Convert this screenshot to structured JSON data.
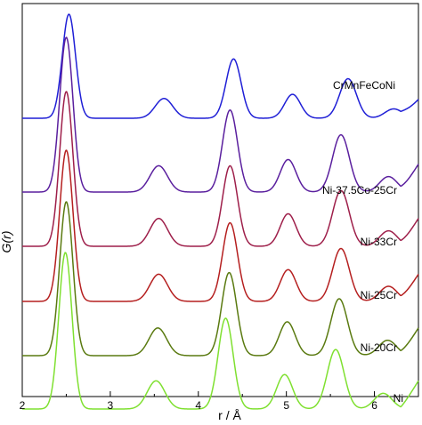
{
  "chart_data": {
    "type": "line",
    "xlabel": "r / Å",
    "ylabel": "G(r)",
    "xlim": [
      2,
      6.5
    ],
    "xticks": [
      2,
      3,
      4,
      5,
      6
    ],
    "y_ticks_shown": false,
    "legend": "inline labels at right",
    "grid": false,
    "x_range_plotted": [
      2.0,
      6.5
    ],
    "series": [
      {
        "name": "CrMnFeCoNi",
        "color": "#1f1fd6",
        "offset": 5,
        "peaks": [
          {
            "r": 2.53,
            "height": 1.0,
            "width": 0.075
          },
          {
            "r": 3.61,
            "height": 0.19,
            "width": 0.1
          },
          {
            "r": 4.4,
            "height": 0.57,
            "width": 0.085
          },
          {
            "r": 5.07,
            "height": 0.23,
            "width": 0.09
          },
          {
            "r": 5.7,
            "height": 0.38,
            "width": 0.095
          },
          {
            "r": 6.22,
            "height": 0.09,
            "width": 0.1
          }
        ]
      },
      {
        "name": "Ni-37.5Co-25Cr",
        "color": "#5a1f9e",
        "offset": 4,
        "peaks": [
          {
            "r": 2.5,
            "height": 1.0,
            "width": 0.075
          },
          {
            "r": 3.55,
            "height": 0.17,
            "width": 0.1
          },
          {
            "r": 4.36,
            "height": 0.53,
            "width": 0.085
          },
          {
            "r": 5.02,
            "height": 0.21,
            "width": 0.09
          },
          {
            "r": 5.62,
            "height": 0.37,
            "width": 0.095
          },
          {
            "r": 6.16,
            "height": 0.1,
            "width": 0.1
          }
        ]
      },
      {
        "name": "Ni-33Cr",
        "color": "#9e1f4a",
        "offset": 3,
        "peaks": [
          {
            "r": 2.5,
            "height": 1.0,
            "width": 0.075
          },
          {
            "r": 3.55,
            "height": 0.18,
            "width": 0.1
          },
          {
            "r": 4.36,
            "height": 0.52,
            "width": 0.085
          },
          {
            "r": 5.02,
            "height": 0.21,
            "width": 0.09
          },
          {
            "r": 5.62,
            "height": 0.36,
            "width": 0.095
          },
          {
            "r": 6.16,
            "height": 0.1,
            "width": 0.1
          }
        ]
      },
      {
        "name": "Ni-25Cr",
        "color": "#b51f1f",
        "offset": 2,
        "peaks": [
          {
            "r": 2.5,
            "height": 1.0,
            "width": 0.075
          },
          {
            "r": 3.55,
            "height": 0.18,
            "width": 0.1
          },
          {
            "r": 4.36,
            "height": 0.52,
            "width": 0.085
          },
          {
            "r": 5.02,
            "height": 0.21,
            "width": 0.09
          },
          {
            "r": 5.62,
            "height": 0.35,
            "width": 0.095
          },
          {
            "r": 6.16,
            "height": 0.1,
            "width": 0.1
          }
        ]
      },
      {
        "name": "Ni-20Cr",
        "color": "#5a7a10",
        "offset": 1,
        "peaks": [
          {
            "r": 2.5,
            "height": 1.0,
            "width": 0.075
          },
          {
            "r": 3.54,
            "height": 0.18,
            "width": 0.1
          },
          {
            "r": 4.35,
            "height": 0.54,
            "width": 0.085
          },
          {
            "r": 5.01,
            "height": 0.22,
            "width": 0.09
          },
          {
            "r": 5.6,
            "height": 0.37,
            "width": 0.095
          },
          {
            "r": 6.15,
            "height": 0.1,
            "width": 0.1
          }
        ]
      },
      {
        "name": "Ni",
        "color": "#7fe030",
        "offset": 0,
        "peaks": [
          {
            "r": 2.49,
            "height": 1.0,
            "width": 0.075
          },
          {
            "r": 3.52,
            "height": 0.18,
            "width": 0.1
          },
          {
            "r": 4.31,
            "height": 0.58,
            "width": 0.085
          },
          {
            "r": 4.98,
            "height": 0.22,
            "width": 0.09
          },
          {
            "r": 5.56,
            "height": 0.38,
            "width": 0.095
          },
          {
            "r": 6.1,
            "height": 0.1,
            "width": 0.1
          }
        ]
      }
    ]
  }
}
